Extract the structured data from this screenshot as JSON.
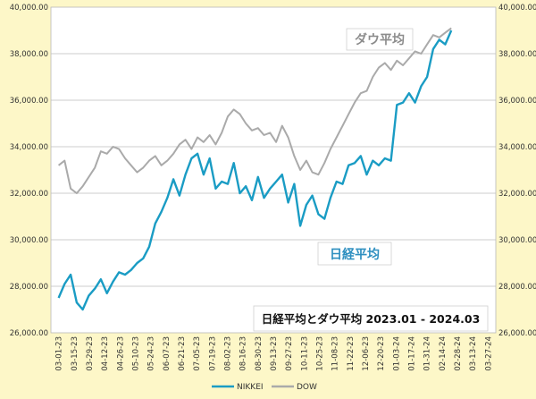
{
  "chart_data": {
    "type": "line",
    "title": "日経平均とダウ平均 2023.01 - 2024.03",
    "ylim": [
      26000,
      40000
    ],
    "y_ticks": [
      "26,000.00",
      "28,000.00",
      "30,000.00",
      "32,000.00",
      "34,000.00",
      "36,000.00",
      "38,000.00",
      "40,000.00"
    ],
    "x_ticks": [
      "03-01-23",
      "03-15-23",
      "03-29-23",
      "04-12-23",
      "04-26-23",
      "05-10-23",
      "05-24-23",
      "06-07-23",
      "06-21-23",
      "07-05-23",
      "07-19-23",
      "08-02-23",
      "08-16-23",
      "08-30-23",
      "09-13-23",
      "09-27-23",
      "10-11-23",
      "10-25-23",
      "11-08-23",
      "11-22-23",
      "12-06-23",
      "12-20-23",
      "01-03-24",
      "01-17-24",
      "01-31-24",
      "02-14-24",
      "02-28-24",
      "03-13-24",
      "03-27-24"
    ],
    "grid": true,
    "legend_position": "bottom",
    "series": [
      {
        "name": "NIKKEI",
        "color": "#1a9cc4",
        "values": [
          [
            0,
            27500
          ],
          [
            1,
            28100
          ],
          [
            2,
            28500
          ],
          [
            3,
            27300
          ],
          [
            4,
            27000
          ],
          [
            5,
            27600
          ],
          [
            6,
            27900
          ],
          [
            7,
            28300
          ],
          [
            8,
            27700
          ],
          [
            9,
            28200
          ],
          [
            10,
            28600
          ],
          [
            11,
            28500
          ],
          [
            12,
            28700
          ],
          [
            13,
            29000
          ],
          [
            14,
            29200
          ],
          [
            15,
            29700
          ],
          [
            16,
            30700
          ],
          [
            17,
            31200
          ],
          [
            18,
            31800
          ],
          [
            19,
            32600
          ],
          [
            20,
            31900
          ],
          [
            21,
            32800
          ],
          [
            22,
            33500
          ],
          [
            23,
            33700
          ],
          [
            24,
            32800
          ],
          [
            25,
            33500
          ],
          [
            26,
            32200
          ],
          [
            27,
            32500
          ],
          [
            28,
            32400
          ],
          [
            29,
            33300
          ],
          [
            30,
            32000
          ],
          [
            31,
            32300
          ],
          [
            32,
            31700
          ],
          [
            33,
            32700
          ],
          [
            34,
            31800
          ],
          [
            35,
            32200
          ],
          [
            36,
            32500
          ],
          [
            37,
            32800
          ],
          [
            38,
            31600
          ],
          [
            39,
            32400
          ],
          [
            40,
            30600
          ],
          [
            41,
            31500
          ],
          [
            42,
            31900
          ],
          [
            43,
            31100
          ],
          [
            44,
            30900
          ],
          [
            45,
            31800
          ],
          [
            46,
            32500
          ],
          [
            47,
            32400
          ],
          [
            48,
            33200
          ],
          [
            49,
            33300
          ],
          [
            50,
            33600
          ],
          [
            51,
            32800
          ],
          [
            52,
            33400
          ],
          [
            53,
            33200
          ],
          [
            54,
            33500
          ],
          [
            55,
            33400
          ],
          [
            56,
            35800
          ],
          [
            57,
            35900
          ],
          [
            58,
            36300
          ],
          [
            59,
            35900
          ],
          [
            60,
            36600
          ],
          [
            61,
            37000
          ],
          [
            62,
            38200
          ],
          [
            63,
            38600
          ],
          [
            64,
            38400
          ],
          [
            65,
            39000
          ]
        ]
      },
      {
        "name": "DOW",
        "color": "#aaaaaa",
        "values": [
          [
            0,
            33200
          ],
          [
            1,
            33400
          ],
          [
            2,
            32200
          ],
          [
            3,
            32000
          ],
          [
            4,
            32300
          ],
          [
            5,
            32700
          ],
          [
            6,
            33100
          ],
          [
            7,
            33800
          ],
          [
            8,
            33700
          ],
          [
            9,
            34000
          ],
          [
            10,
            33900
          ],
          [
            11,
            33500
          ],
          [
            12,
            33200
          ],
          [
            13,
            32900
          ],
          [
            14,
            33100
          ],
          [
            15,
            33400
          ],
          [
            16,
            33600
          ],
          [
            17,
            33200
          ],
          [
            18,
            33400
          ],
          [
            19,
            33700
          ],
          [
            20,
            34100
          ],
          [
            21,
            34300
          ],
          [
            22,
            33900
          ],
          [
            23,
            34400
          ],
          [
            24,
            34200
          ],
          [
            25,
            34500
          ],
          [
            26,
            34100
          ],
          [
            27,
            34600
          ],
          [
            28,
            35300
          ],
          [
            29,
            35600
          ],
          [
            30,
            35400
          ],
          [
            31,
            35000
          ],
          [
            32,
            34700
          ],
          [
            33,
            34800
          ],
          [
            34,
            34500
          ],
          [
            35,
            34600
          ],
          [
            36,
            34200
          ],
          [
            37,
            34900
          ],
          [
            38,
            34400
          ],
          [
            39,
            33600
          ],
          [
            40,
            33000
          ],
          [
            41,
            33400
          ],
          [
            42,
            32900
          ],
          [
            43,
            32800
          ],
          [
            44,
            33300
          ],
          [
            45,
            33900
          ],
          [
            46,
            34400
          ],
          [
            47,
            34900
          ],
          [
            48,
            35400
          ],
          [
            49,
            35900
          ],
          [
            50,
            36300
          ],
          [
            51,
            36400
          ],
          [
            52,
            37000
          ],
          [
            53,
            37400
          ],
          [
            54,
            37600
          ],
          [
            55,
            37300
          ],
          [
            56,
            37700
          ],
          [
            57,
            37500
          ],
          [
            58,
            37800
          ],
          [
            59,
            38100
          ],
          [
            60,
            38000
          ],
          [
            61,
            38400
          ],
          [
            62,
            38800
          ],
          [
            63,
            38700
          ],
          [
            64,
            38900
          ],
          [
            65,
            39100
          ]
        ]
      }
    ],
    "annotations": [
      {
        "text": "ダウ平均",
        "series": "DOW"
      },
      {
        "text": "日経平均",
        "series": "NIKKEI"
      }
    ]
  }
}
